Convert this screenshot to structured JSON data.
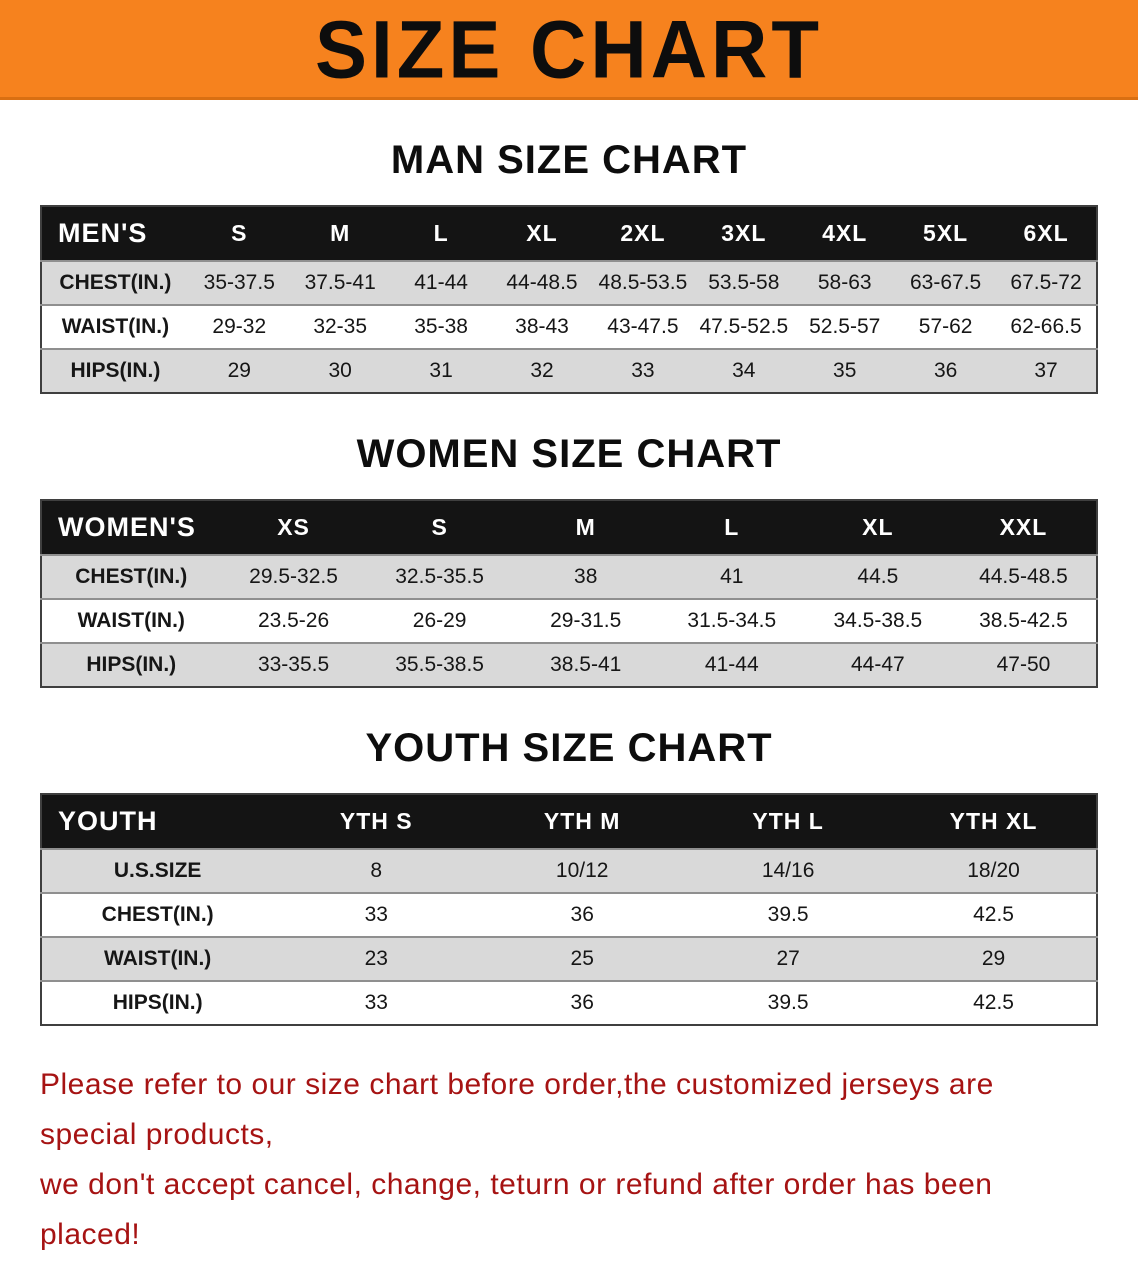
{
  "banner": {
    "title": "SIZE CHART"
  },
  "colors": {
    "banner_bg": "#f6821e",
    "table_header_bg": "#141414",
    "row_alt_bg": "#d9d9d9",
    "note_color": "#a61313"
  },
  "sections": [
    {
      "heading": "MAN SIZE CHART",
      "table": {
        "header": [
          "MEN'S",
          "S",
          "M",
          "L",
          "XL",
          "2XL",
          "3XL",
          "4XL",
          "5XL",
          "6XL"
        ],
        "rows": [
          [
            "CHEST(IN.)",
            "35-37.5",
            "37.5-41",
            "41-44",
            "44-48.5",
            "48.5-53.5",
            "53.5-58",
            "58-63",
            "63-67.5",
            "67.5-72"
          ],
          [
            "WAIST(IN.)",
            "29-32",
            "32-35",
            "35-38",
            "38-43",
            "43-47.5",
            "47.5-52.5",
            "52.5-57",
            "57-62",
            "62-66.5"
          ],
          [
            "HIPS(IN.)",
            "29",
            "30",
            "31",
            "32",
            "33",
            "34",
            "35",
            "36",
            "37"
          ]
        ]
      }
    },
    {
      "heading": "WOMEN SIZE CHART",
      "table": {
        "header": [
          "WOMEN'S",
          "XS",
          "S",
          "M",
          "L",
          "XL",
          "XXL"
        ],
        "rows": [
          [
            "CHEST(IN.)",
            "29.5-32.5",
            "32.5-35.5",
            "38",
            "41",
            "44.5",
            "44.5-48.5"
          ],
          [
            "WAIST(IN.)",
            "23.5-26",
            "26-29",
            "29-31.5",
            "31.5-34.5",
            "34.5-38.5",
            "38.5-42.5"
          ],
          [
            "HIPS(IN.)",
            "33-35.5",
            "35.5-38.5",
            "38.5-41",
            "41-44",
            "44-47",
            "47-50"
          ]
        ]
      }
    },
    {
      "heading": "YOUTH SIZE CHART",
      "table": {
        "header": [
          "YOUTH",
          "YTH S",
          "YTH M",
          "YTH L",
          "YTH XL"
        ],
        "rows": [
          [
            "U.S.SIZE",
            "8",
            "10/12",
            "14/16",
            "18/20"
          ],
          [
            "CHEST(IN.)",
            "33",
            "36",
            "39.5",
            "42.5"
          ],
          [
            "WAIST(IN.)",
            "23",
            "25",
            "27",
            "29"
          ],
          [
            "HIPS(IN.)",
            "33",
            "36",
            "39.5",
            "42.5"
          ]
        ]
      }
    }
  ],
  "footer_note": {
    "line1": "Please refer to our size chart before order,the customized jerseys are special products,",
    "line2": "we don't accept cancel, change, teturn or refund after order has been placed!"
  }
}
